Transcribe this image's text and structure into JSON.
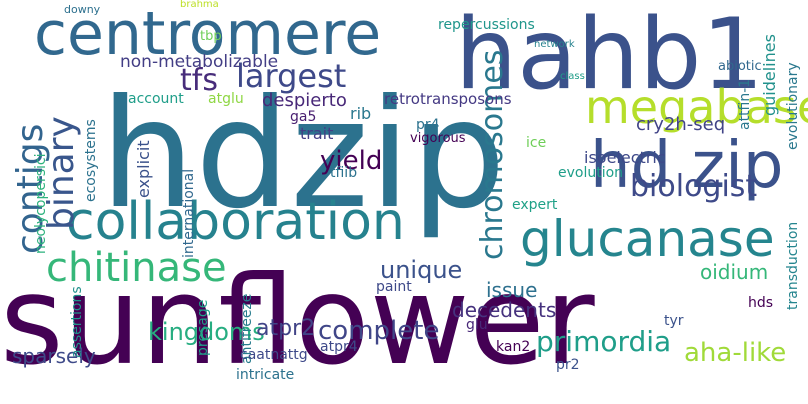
{
  "words": [
    {
      "text": "sunflower",
      "color": "#440154"
    },
    {
      "text": "hdzip",
      "color": "#2c728e"
    },
    {
      "text": "centromere",
      "color": "#31688e"
    },
    {
      "text": "hahb1",
      "color": "#3b528b"
    },
    {
      "text": "collaboration",
      "color": "#26828e"
    },
    {
      "text": "glucanase",
      "color": "#25858e"
    },
    {
      "text": "hd zip",
      "color": "#3b528b"
    },
    {
      "text": "megabases",
      "color": "#b5de2b"
    },
    {
      "text": "chitinase",
      "color": "#35b779"
    },
    {
      "text": "contigs",
      "color": "#32648e"
    },
    {
      "text": "binary",
      "color": "#39568c"
    },
    {
      "text": "largest",
      "color": "#3e4989"
    },
    {
      "text": "biologist",
      "color": "#3e4a89"
    },
    {
      "text": "primordia",
      "color": "#1f9e89"
    },
    {
      "text": "chromosomes",
      "color": "#2a788e"
    },
    {
      "text": "kingdoms",
      "color": "#27ad81"
    },
    {
      "text": "aha-like",
      "color": "#a0da39"
    },
    {
      "text": "unique",
      "color": "#3b528b"
    },
    {
      "text": "yield",
      "color": "#440154"
    },
    {
      "text": "complete",
      "color": "#404688"
    },
    {
      "text": "atpr2",
      "color": "#414487"
    },
    {
      "text": "tfs",
      "color": "#472c7a"
    },
    {
      "text": "sparsely",
      "color": "#3e4a89"
    },
    {
      "text": "issue",
      "color": "#2d708e"
    },
    {
      "text": "decedents",
      "color": "#46327e"
    },
    {
      "text": "cry2h-seq",
      "color": "#414487"
    },
    {
      "text": "non-metabolizable",
      "color": "#433e85"
    },
    {
      "text": "despierto",
      "color": "#482878"
    },
    {
      "text": "retrotransposons",
      "color": "#443983"
    },
    {
      "text": "repercussions",
      "color": "#1f968b"
    },
    {
      "text": "evolutionary",
      "color": "#2a788e"
    },
    {
      "text": "guidelines",
      "color": "#21918c"
    },
    {
      "text": "transduction",
      "color": "#25858e"
    },
    {
      "text": "oidium",
      "color": "#35b779"
    },
    {
      "text": "trait",
      "color": "#433e85"
    },
    {
      "text": "rib",
      "color": "#2a788e"
    },
    {
      "text": "ice",
      "color": "#6ece58"
    },
    {
      "text": "isoelectric",
      "color": "#3e4989"
    },
    {
      "text": "pr4",
      "color": "#2c728e"
    },
    {
      "text": "ga5",
      "color": "#481f70"
    },
    {
      "text": "atglu",
      "color": "#8fd744"
    },
    {
      "text": "account",
      "color": "#1f9e89"
    },
    {
      "text": "explicit",
      "color": "#3b528b"
    },
    {
      "text": "international",
      "color": "#31688e"
    },
    {
      "text": "ecosystems",
      "color": "#2c728e"
    },
    {
      "text": "neolycopersici",
      "color": "#2db27d"
    },
    {
      "text": "paint",
      "color": "#3e4989"
    },
    {
      "text": "antifreeze",
      "color": "#287d8e"
    },
    {
      "text": "atpr4",
      "color": "#3e4989"
    },
    {
      "text": "glu",
      "color": "#482878"
    },
    {
      "text": "kan2",
      "color": "#440154"
    },
    {
      "text": "pr2",
      "color": "#3b528b"
    },
    {
      "text": "tyr",
      "color": "#3b528b"
    },
    {
      "text": "hds",
      "color": "#440154"
    },
    {
      "text": "expert",
      "color": "#1fa187"
    },
    {
      "text": "evolution",
      "color": "#1f9e89"
    },
    {
      "text": "tfiib",
      "color": "#2c728e"
    },
    {
      "text": "caatnattg",
      "color": "#3e4989"
    },
    {
      "text": "intricate",
      "color": "#2c728e"
    },
    {
      "text": "assertions",
      "color": "#21918c"
    },
    {
      "text": "presage",
      "color": "#1f9e89"
    },
    {
      "text": "attfin-1",
      "color": "#2a788e"
    },
    {
      "text": "abiotic",
      "color": "#31688e"
    },
    {
      "text": "tbp",
      "color": "#6ece58"
    },
    {
      "text": "vigorous",
      "color": "#440154"
    },
    {
      "text": "brahma",
      "color": "#bddf26"
    },
    {
      "text": "downy",
      "color": "#2d708e"
    },
    {
      "text": "class",
      "color": "#1f9e89"
    },
    {
      "text": "network",
      "color": "#26828e"
    }
  ]
}
